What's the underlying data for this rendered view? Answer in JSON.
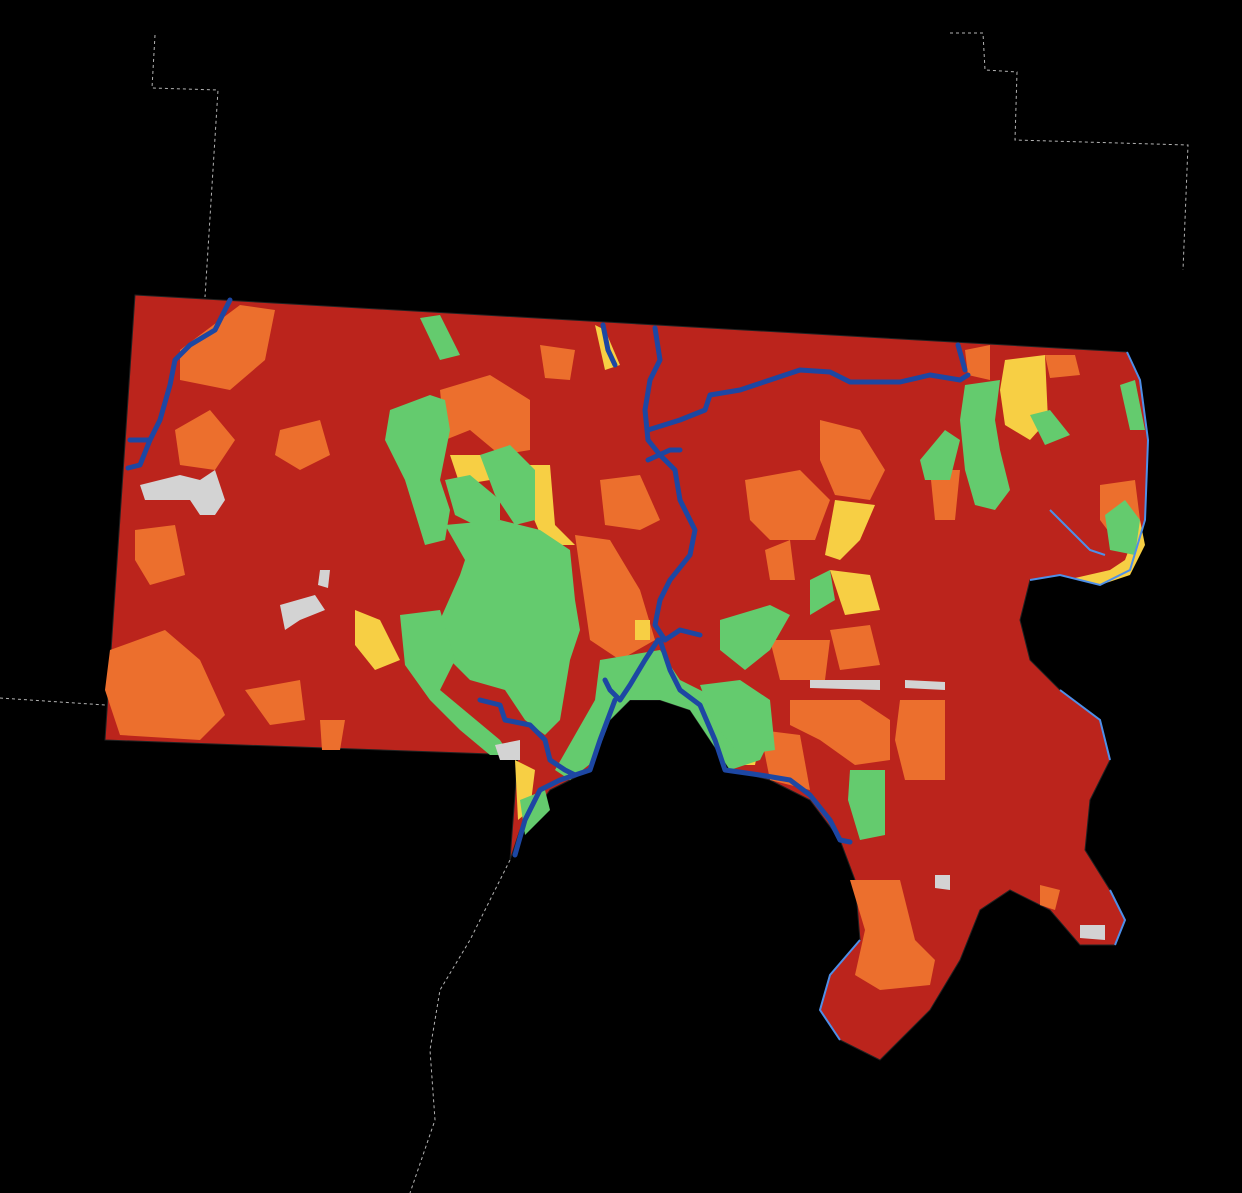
{
  "map": {
    "background_color": "#000000",
    "boundary_line_color": "#ffffff",
    "category_colors": {
      "red": "#bb241c",
      "orange": "#ec6f2d",
      "yellow": "#f7cf44",
      "green": "#64cb6e",
      "gray": "#d3d3d3"
    },
    "river_color": "#1d47a3",
    "water_color": "#4e8fe8"
  }
}
